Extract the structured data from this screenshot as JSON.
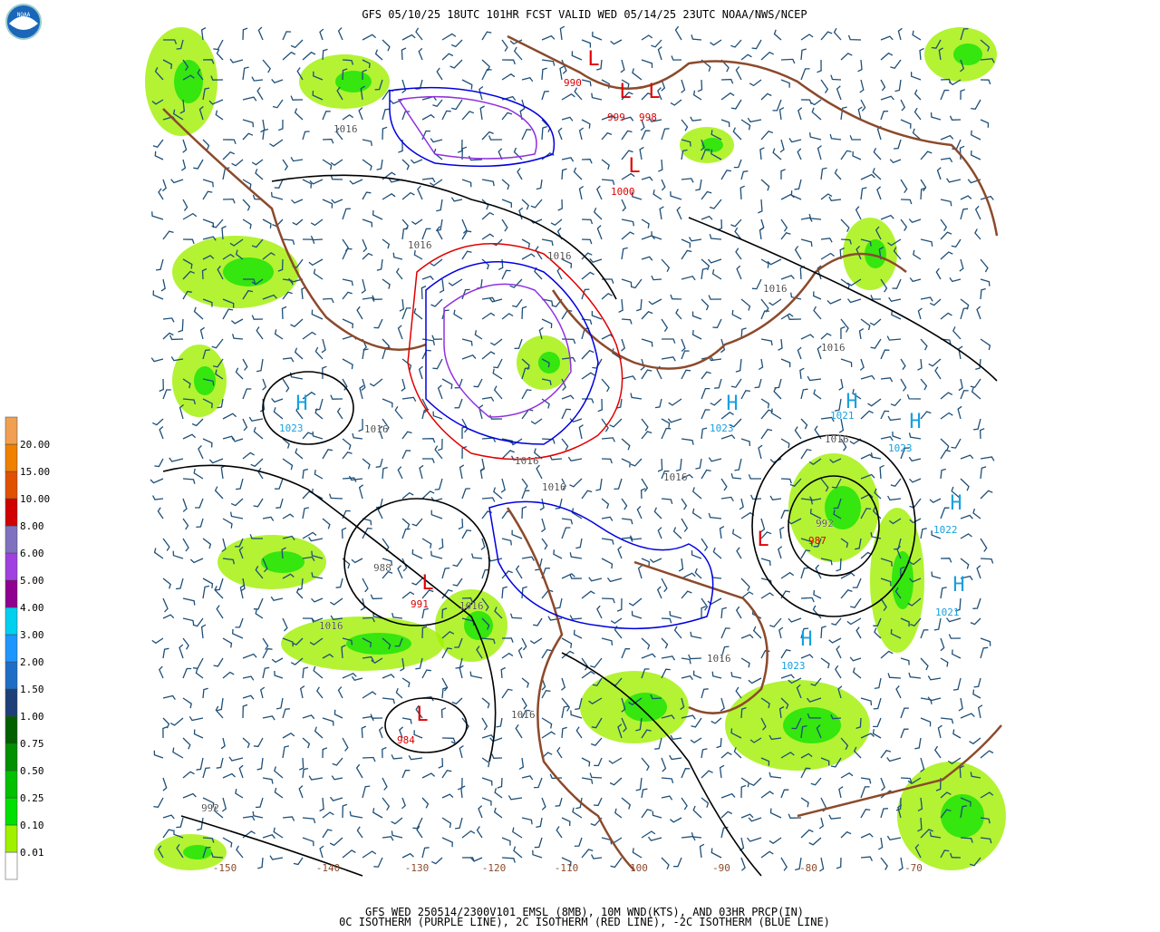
{
  "header": {
    "title": "GFS 05/10/25 18UTC 101HR FCST VALID WED 05/14/25 23UTC NOAA/NWS/NCEP"
  },
  "footer": {
    "lines": [
      "GFS WED 250514/2300V101 EMSL (8MB), 10M WND(KTS), AND 03HR PRCP(IN)",
      "0C ISOTHERM (PURPLE LINE), 2C ISOTHERM (RED LINE), -2C ISOTHERM (BLUE LINE)"
    ]
  },
  "legend": {
    "labels": [
      "0.01",
      "0.10",
      "0.25",
      "0.50",
      "0.75",
      "1.00",
      "1.50",
      "2.00",
      "3.00",
      "4.00",
      "5.00",
      "6.00",
      "8.00",
      "10.00",
      "15.00",
      "20.00"
    ]
  },
  "map": {
    "centers": [
      {
        "letter": "L",
        "label": "990",
        "color": "#e00000"
      },
      {
        "letter": "L",
        "label": "999",
        "color": "#e00000"
      },
      {
        "letter": "L",
        "label": "998",
        "color": "#e00000"
      },
      {
        "letter": "L",
        "label": "1000",
        "color": "#e00000"
      },
      {
        "letter": "H",
        "label": "1023",
        "color": "#18a0e0"
      },
      {
        "letter": "H",
        "label": "1023",
        "color": "#18a0e0"
      },
      {
        "letter": "H",
        "label": "1021",
        "color": "#18a0e0"
      },
      {
        "letter": "H",
        "label": "1023",
        "color": "#18a0e0"
      },
      {
        "letter": "H",
        "label": "1022",
        "color": "#18a0e0"
      },
      {
        "letter": "H",
        "label": "1021",
        "color": "#18a0e0"
      },
      {
        "letter": "H",
        "label": "1023",
        "color": "#18a0e0"
      },
      {
        "letter": "L",
        "label": "984",
        "color": "#e00000"
      },
      {
        "letter": "L",
        "label": "987",
        "color": "#e00000"
      },
      {
        "letter": "L",
        "label": "991",
        "color": "#e00000"
      }
    ],
    "contour_labels": [
      "1016",
      "1016",
      "1016",
      "1016",
      "1016",
      "1016",
      "1016",
      "1016",
      "1016",
      "1016",
      "1016",
      "1016",
      "1016",
      "1016",
      "992",
      "992",
      "988"
    ],
    "longitudes": [
      "-150",
      "-140",
      "-130",
      "-120",
      "-110",
      "100",
      "-90",
      "-80",
      "-70"
    ]
  }
}
